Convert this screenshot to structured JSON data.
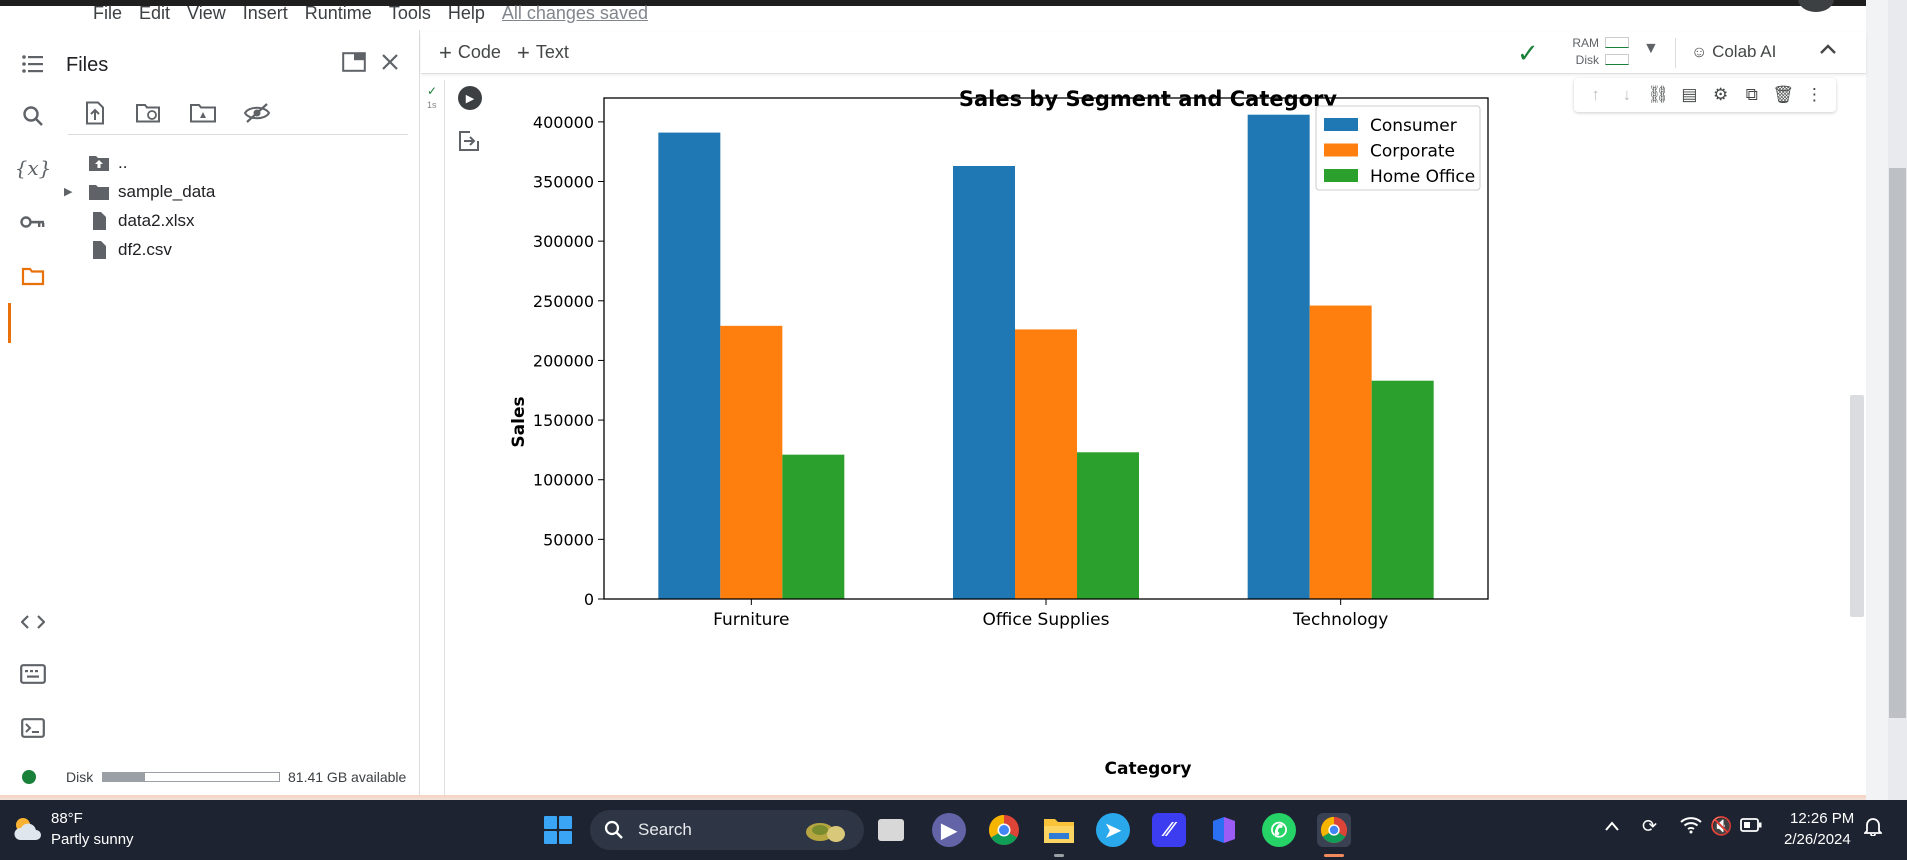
{
  "menu": {
    "items": [
      "File",
      "Edit",
      "View",
      "Insert",
      "Runtime",
      "Tools",
      "Help"
    ],
    "saved_status": "All changes saved"
  },
  "files_panel": {
    "title": "Files",
    "tree": [
      {
        "label": "..",
        "type": "up-folder"
      },
      {
        "label": "sample_data",
        "type": "folder"
      },
      {
        "label": "data2.xlsx",
        "type": "file"
      },
      {
        "label": "df2.csv",
        "type": "file"
      }
    ],
    "disk": {
      "label": "Disk",
      "available": "81.41 GB available",
      "used_fraction": 0.24
    }
  },
  "notebook_toolbar": {
    "add_code": "Code",
    "add_text": "Text",
    "ram_label": "RAM",
    "disk_label": "Disk",
    "colab_ai": "Colab AI"
  },
  "cell": {
    "exec_time": "1s"
  },
  "chart_data": {
    "type": "bar",
    "title": "Sales by Segment and Category",
    "xlabel": "Category",
    "ylabel": "Sales",
    "categories": [
      "Furniture",
      "Office Supplies",
      "Technology"
    ],
    "series": [
      {
        "name": "Consumer",
        "color": "#1f77b4",
        "values": [
          391000,
          363000,
          406000
        ]
      },
      {
        "name": "Corporate",
        "color": "#ff7f0e",
        "values": [
          229000,
          226000,
          246000
        ]
      },
      {
        "name": "Home Office",
        "color": "#2ca02c",
        "values": [
          121000,
          123000,
          183000
        ]
      }
    ],
    "ylim": [
      0,
      420000
    ],
    "yticks": [
      "0",
      "50000",
      "100000",
      "150000",
      "200000",
      "250000",
      "300000",
      "350000",
      "400000"
    ],
    "ytick_values": [
      0,
      50000,
      100000,
      150000,
      200000,
      250000,
      300000,
      350000,
      400000
    ],
    "legend_position": "top-right",
    "grid": false
  },
  "taskbar": {
    "weather_temp": "88°F",
    "weather_desc": "Partly sunny",
    "search_label": "Search",
    "time": "12:26 PM",
    "date": "2/26/2024"
  }
}
